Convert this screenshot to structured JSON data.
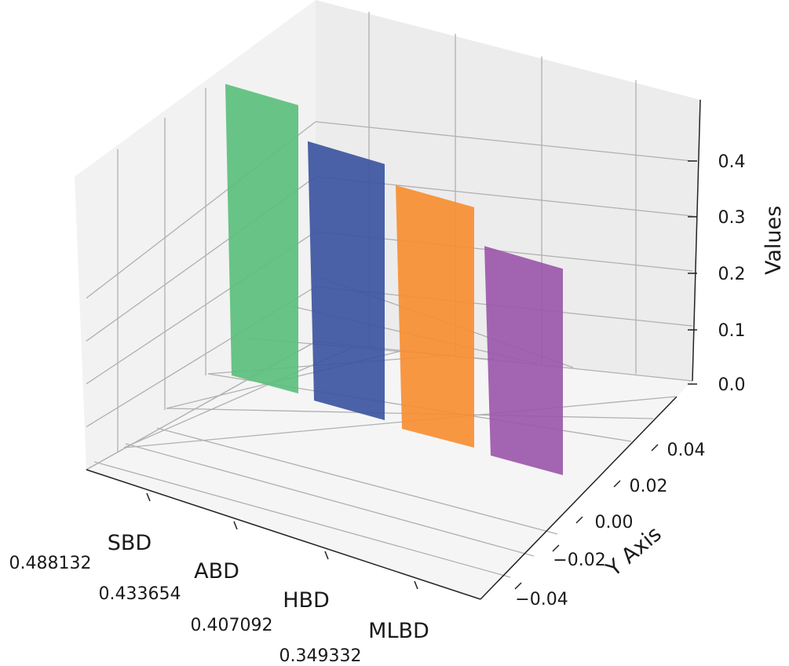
{
  "chart_data": {
    "type": "bar",
    "projection": "3d",
    "categories": [
      "SBD",
      "ABD",
      "HBD",
      "MLBD"
    ],
    "values": [
      0.488132,
      0.433654,
      0.407092,
      0.349332
    ],
    "value_labels": [
      "0.488132",
      "0.433654",
      "0.407092",
      "0.349332"
    ],
    "colors": [
      "#5cbf7d",
      "#3d55a1",
      "#f78e32",
      "#9b58aa"
    ],
    "xlabel": "",
    "ylabel": "Y Axis",
    "zlabel": "Values",
    "y_ticks": [
      "−0.04",
      "−0.02",
      "0.00",
      "0.02",
      "0.04"
    ],
    "z_ticks": [
      "0.0",
      "0.1",
      "0.2",
      "0.3",
      "0.4"
    ],
    "grid": true
  }
}
